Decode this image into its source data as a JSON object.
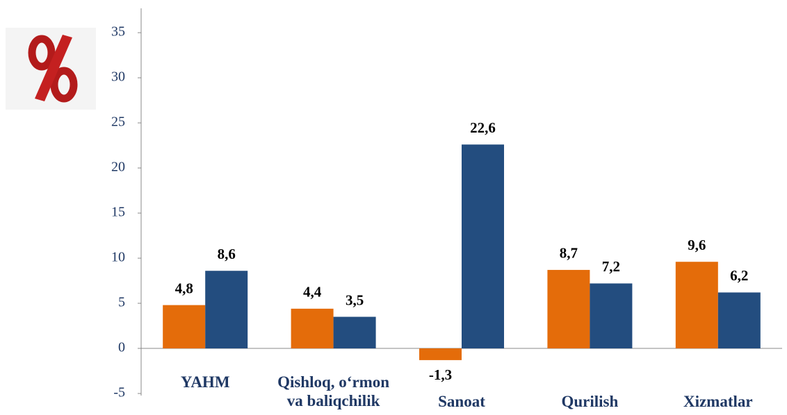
{
  "chart_data": {
    "type": "bar",
    "categories": [
      "YAHM",
      "Qishloq, o‘rmon va baliqchilik",
      "Sanoat",
      "Qurilish",
      "Xizmatlar"
    ],
    "series": [
      {
        "color": "#e46c0a",
        "values": [
          4.8,
          4.4,
          -1.3,
          8.7,
          9.6
        ],
        "value_labels": [
          "4,8",
          "4,4",
          "-1,3",
          "8,7",
          "9,6"
        ]
      },
      {
        "color": "#234d7f",
        "values": [
          8.6,
          3.5,
          22.6,
          7.2,
          6.2
        ],
        "value_labels": [
          "8,6",
          "3,5",
          "22,6",
          "7,2",
          "6,2"
        ]
      }
    ],
    "negative_label_color": "#ff0000",
    "ylim": [
      -5,
      37.7
    ],
    "yticks": [
      -5,
      0,
      5,
      10,
      15,
      20,
      25,
      30,
      35
    ],
    "grid": false
  }
}
